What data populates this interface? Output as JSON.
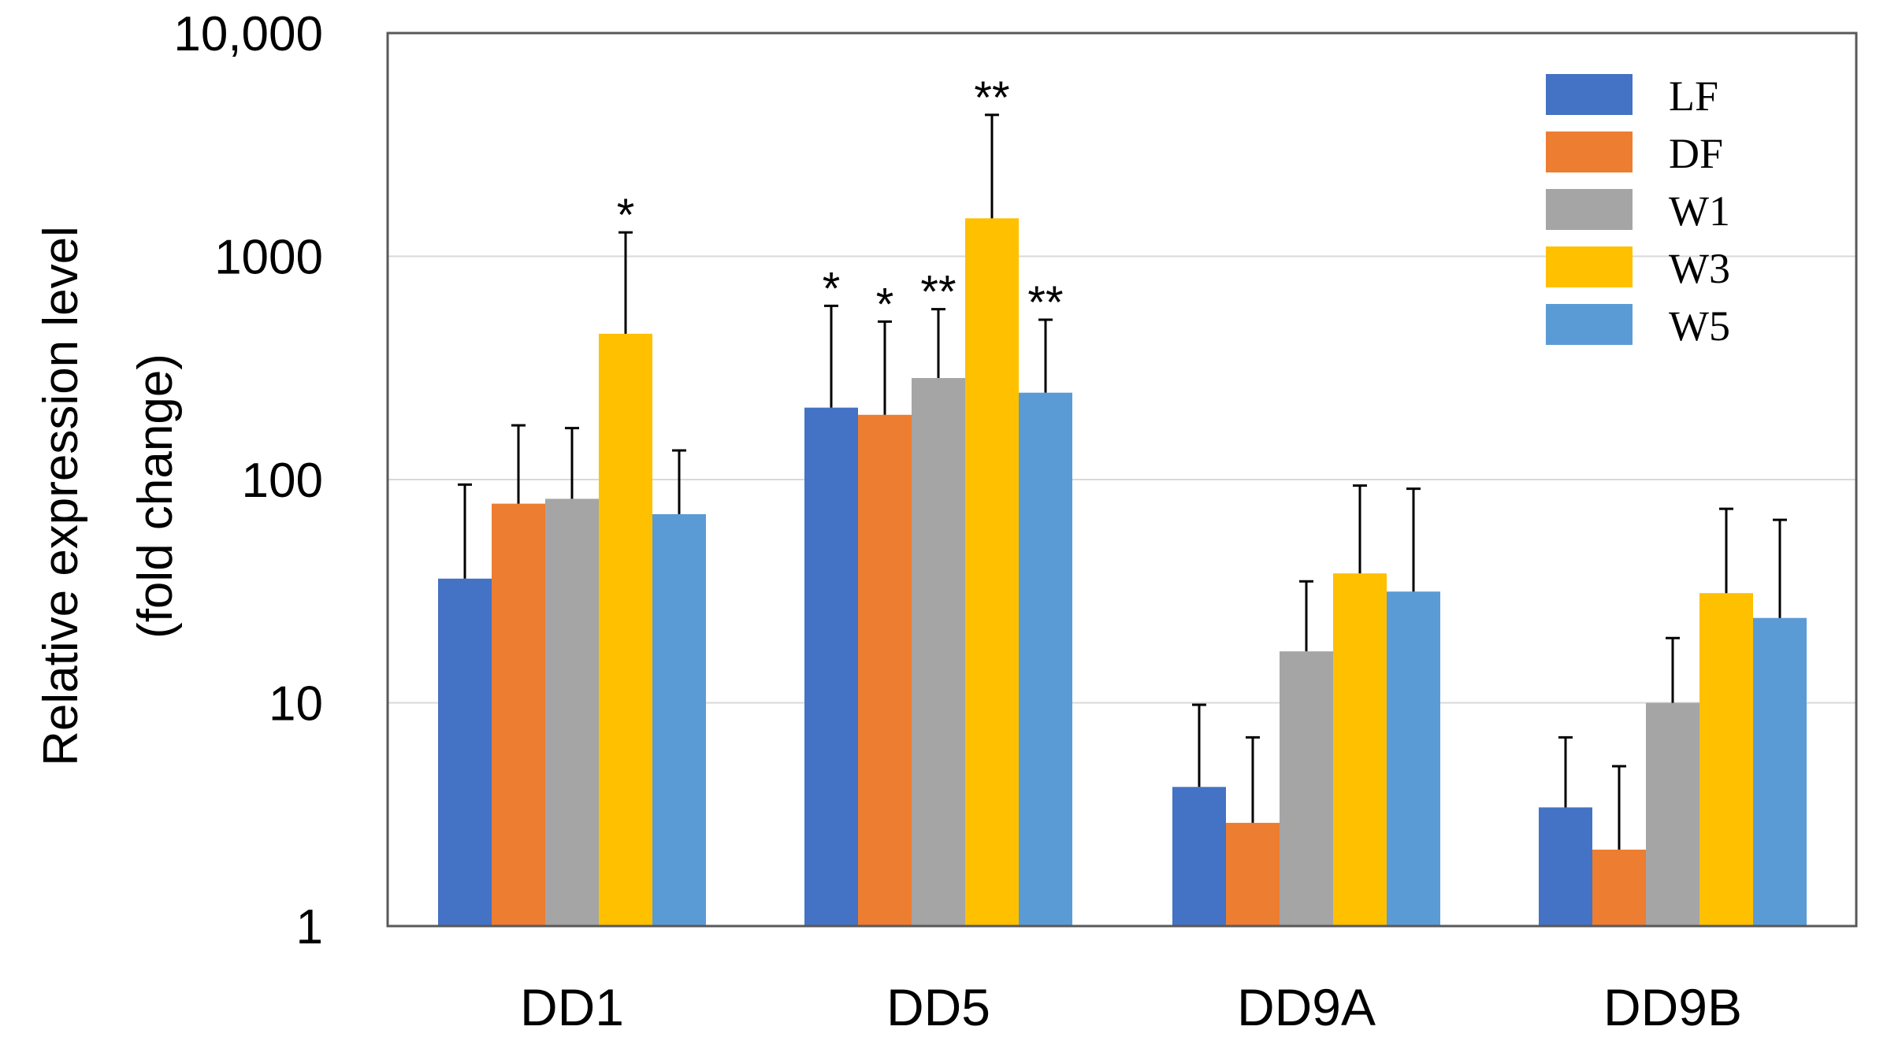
{
  "chart_data": {
    "type": "bar",
    "title": "",
    "xlabel": "",
    "ylabel_line1": "Relative expression level",
    "ylabel_line2": "(fold change)",
    "yscale": "log",
    "ylim": [
      1,
      10000
    ],
    "yticks": [
      1,
      10,
      100,
      1000,
      10000
    ],
    "ytick_labels": [
      "1",
      "10",
      "100",
      "1000",
      "10,000"
    ],
    "grid": true,
    "legend_position": "top-right",
    "categories": [
      "DD1",
      "DD5",
      "DD9A",
      "DD9B"
    ],
    "series": [
      {
        "name": "LF",
        "color": "#4472C4",
        "values": [
          36,
          210,
          4.2,
          3.4
        ],
        "errors_upper": [
          95,
          600,
          9.8,
          7.0
        ],
        "significance": [
          "",
          "*",
          "",
          ""
        ]
      },
      {
        "name": "DF",
        "color": "#ED7D31",
        "values": [
          78,
          195,
          2.9,
          2.2
        ],
        "errors_upper": [
          175,
          510,
          7.0,
          5.2
        ],
        "significance": [
          "",
          "*",
          "",
          ""
        ]
      },
      {
        "name": "W1",
        "color": "#A5A5A5",
        "values": [
          82,
          285,
          17,
          10
        ],
        "errors_upper": [
          170,
          580,
          35,
          19.5
        ],
        "significance": [
          "",
          "**",
          "",
          ""
        ]
      },
      {
        "name": "W3",
        "color": "#FFC000",
        "values": [
          450,
          1480,
          38,
          31
        ],
        "errors_upper": [
          1280,
          4300,
          94,
          74
        ],
        "significance": [
          "*",
          "**",
          "",
          ""
        ]
      },
      {
        "name": "W5",
        "color": "#5B9BD5",
        "values": [
          70,
          245,
          31.5,
          24
        ],
        "errors_upper": [
          135,
          520,
          91,
          66
        ],
        "significance": [
          "",
          "**",
          "",
          ""
        ]
      }
    ]
  }
}
